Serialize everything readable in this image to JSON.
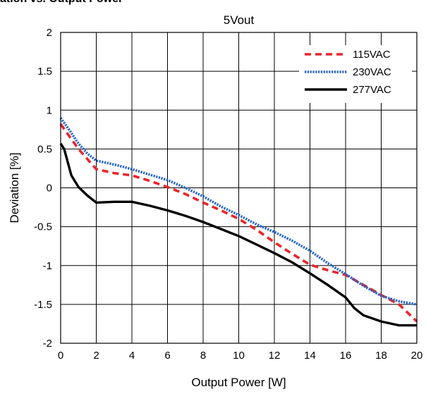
{
  "header": {
    "partial_title": "ation vs. Output Power"
  },
  "chart_data": {
    "type": "line",
    "title": "5Vout",
    "xlabel": "Output Power [W]",
    "ylabel": "Deviation [%]",
    "xlim": [
      0,
      20
    ],
    "ylim": [
      -2,
      2
    ],
    "xticks": [
      0,
      2,
      4,
      6,
      8,
      10,
      12,
      14,
      16,
      18,
      20
    ],
    "yticks": [
      2,
      1.5,
      1,
      0.5,
      0,
      -0.5,
      -1,
      -1.5,
      -2
    ],
    "ytick_labels": [
      "2",
      "1.5",
      "1",
      "0.5",
      "0",
      "-0.5",
      "-1",
      "-1.5",
      "-2"
    ],
    "grid": true,
    "legend_position": "top-right",
    "series": [
      {
        "name": "115VAC",
        "color": "#e8262c",
        "style": "dashed",
        "x": [
          0,
          0.5,
          1,
          1.5,
          2,
          3,
          4,
          5,
          6,
          7,
          8,
          9,
          10,
          11,
          12,
          13,
          14,
          15,
          16,
          17,
          18,
          19,
          20
        ],
        "y": [
          0.82,
          0.66,
          0.5,
          0.37,
          0.24,
          0.19,
          0.16,
          0.09,
          0.01,
          -0.08,
          -0.19,
          -0.29,
          -0.4,
          -0.54,
          -0.7,
          -0.85,
          -0.99,
          -1.06,
          -1.12,
          -1.25,
          -1.38,
          -1.5,
          -1.72
        ]
      },
      {
        "name": "230VAC",
        "color": "#1f5fc8",
        "style": "dotted",
        "x": [
          0,
          0.5,
          1,
          1.5,
          2,
          3,
          4,
          5,
          6,
          7,
          8,
          9,
          10,
          11,
          12,
          13,
          14,
          15,
          16,
          17,
          18,
          19,
          20
        ],
        "y": [
          0.9,
          0.74,
          0.57,
          0.44,
          0.35,
          0.3,
          0.24,
          0.17,
          0.1,
          0.0,
          -0.11,
          -0.24,
          -0.35,
          -0.47,
          -0.57,
          -0.68,
          -0.81,
          -0.97,
          -1.11,
          -1.26,
          -1.39,
          -1.46,
          -1.5
        ]
      },
      {
        "name": "277VAC",
        "color": "#000000",
        "style": "solid",
        "x": [
          0,
          0.2,
          0.6,
          1,
          1.5,
          2,
          3,
          4,
          5,
          6,
          7,
          8,
          9,
          10,
          11,
          12,
          13,
          14,
          15,
          16,
          16.5,
          17,
          18,
          19,
          20
        ],
        "y": [
          0.57,
          0.5,
          0.16,
          0.01,
          -0.1,
          -0.19,
          -0.18,
          -0.18,
          -0.23,
          -0.29,
          -0.36,
          -0.44,
          -0.53,
          -0.62,
          -0.73,
          -0.84,
          -0.96,
          -1.1,
          -1.25,
          -1.41,
          -1.55,
          -1.64,
          -1.72,
          -1.77,
          -1.77
        ]
      }
    ]
  }
}
